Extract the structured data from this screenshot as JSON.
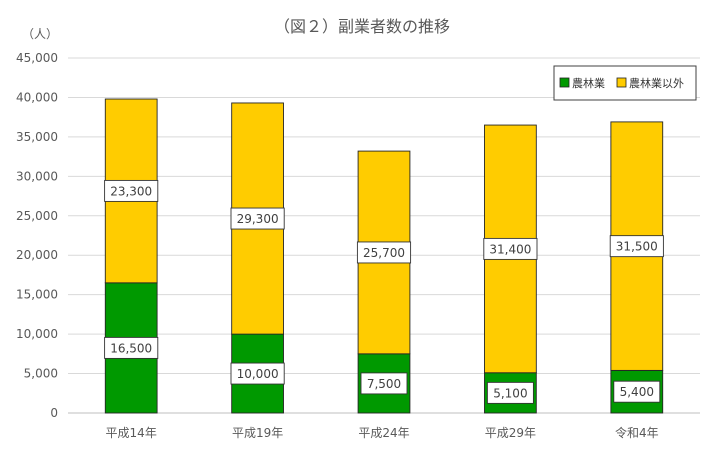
{
  "chart_data": {
    "type": "bar",
    "stacked": true,
    "title": "（図２）副業者数の推移",
    "ylabel": "（人）",
    "xlabel": "",
    "categories": [
      "平成14年",
      "平成19年",
      "平成24年",
      "平成29年",
      "令和4年"
    ],
    "ylim": [
      0,
      45000
    ],
    "yticks": [
      "0",
      "5,000",
      "10,000",
      "15,000",
      "20,000",
      "25,000",
      "30,000",
      "35,000",
      "40,000",
      "45,000"
    ],
    "grid": true,
    "legend_position": "top-right",
    "series": [
      {
        "name": "農林業",
        "color": "#009900",
        "values": [
          16500,
          10000,
          7500,
          5100,
          5400
        ],
        "labels": [
          "16,500",
          "10,000",
          "7,500",
          "5,100",
          "5,400"
        ]
      },
      {
        "name": "農林業以外",
        "color": "#FFCC00",
        "values": [
          23300,
          29300,
          25700,
          31400,
          31500
        ],
        "labels": [
          "23,300",
          "29,300",
          "25,700",
          "31,400",
          "31,500"
        ]
      }
    ]
  }
}
